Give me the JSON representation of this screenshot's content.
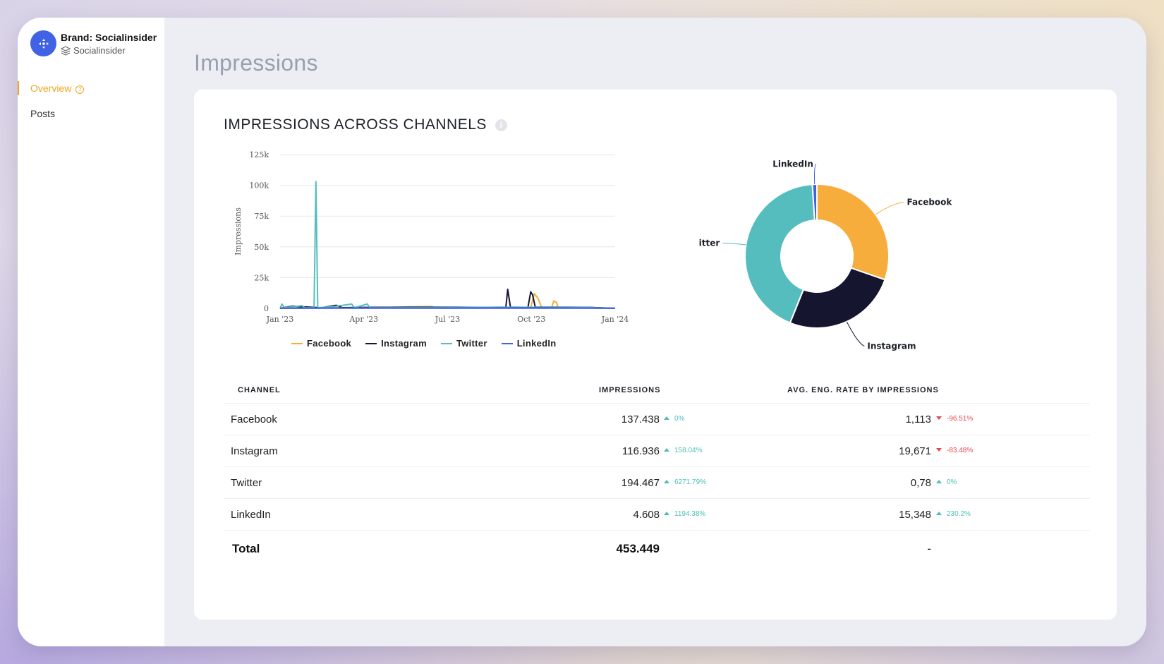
{
  "brand": {
    "name": "Brand: Socialinsider",
    "sub": "Socialinsider"
  },
  "nav": [
    {
      "label": "Overview",
      "active": true
    },
    {
      "label": "Posts",
      "active": false
    }
  ],
  "page_title": "Impressions",
  "card": {
    "title": "IMPRESSIONS ACROSS CHANNELS"
  },
  "colors": {
    "facebook": "#f7ad3b",
    "instagram": "#151530",
    "twitter": "#55bdbd",
    "linkedin": "#3f63e2",
    "up": "#4bbfba",
    "down": "#e8474e",
    "accent": "#f0a31e"
  },
  "chart_data": [
    {
      "type": "line",
      "ylabel": "Impressions",
      "ylim": [
        0,
        125000
      ],
      "y_ticks": [
        "0",
        "25k",
        "50k",
        "75k",
        "100k",
        "125k"
      ],
      "x_ticks": [
        "Jan '23",
        "Apr '23",
        "Jul '23",
        "Oct '23",
        "Jan '24"
      ],
      "x_range": [
        "2023-01-01",
        "2024-01-01"
      ],
      "series": [
        {
          "name": "Facebook",
          "color": "#f7ad3b",
          "points": [
            [
              "2023-01-01",
              0
            ],
            [
              "2023-06-15",
              1500
            ],
            [
              "2023-06-22",
              200
            ],
            [
              "2023-10-01",
              600
            ],
            [
              "2023-10-05",
              12000
            ],
            [
              "2023-10-09",
              8000
            ],
            [
              "2023-10-13",
              600
            ],
            [
              "2023-10-24",
              800
            ],
            [
              "2023-10-26",
              6000
            ],
            [
              "2023-10-29",
              5000
            ],
            [
              "2023-10-31",
              500
            ],
            [
              "2024-01-01",
              0
            ]
          ]
        },
        {
          "name": "Instagram",
          "color": "#151530",
          "points": [
            [
              "2023-01-01",
              0
            ],
            [
              "2023-01-10",
              1200
            ],
            [
              "2023-01-15",
              1800
            ],
            [
              "2023-01-20",
              1500
            ],
            [
              "2023-02-15",
              500
            ],
            [
              "2023-03-03",
              2500
            ],
            [
              "2023-03-10",
              600
            ],
            [
              "2023-04-10",
              800
            ],
            [
              "2023-05-20",
              1000
            ],
            [
              "2023-07-15",
              900
            ],
            [
              "2023-08-10",
              800
            ],
            [
              "2023-09-04",
              1000
            ],
            [
              "2023-09-06",
              15500
            ],
            [
              "2023-09-09",
              1000
            ],
            [
              "2023-09-28",
              800
            ],
            [
              "2023-10-01",
              13500
            ],
            [
              "2023-10-03",
              11000
            ],
            [
              "2023-10-06",
              1000
            ],
            [
              "2023-11-10",
              900
            ],
            [
              "2023-12-05",
              800
            ],
            [
              "2024-01-01",
              0
            ]
          ]
        },
        {
          "name": "Twitter",
          "color": "#55bdbd",
          "points": [
            [
              "2023-01-01",
              0
            ],
            [
              "2023-01-03",
              3500
            ],
            [
              "2023-01-06",
              600
            ],
            [
              "2023-01-25",
              2200
            ],
            [
              "2023-01-28",
              500
            ],
            [
              "2023-02-07",
              500
            ],
            [
              "2023-02-09",
              103000
            ],
            [
              "2023-02-11",
              500
            ],
            [
              "2023-03-01",
              1500
            ],
            [
              "2023-03-20",
              3500
            ],
            [
              "2023-03-23",
              600
            ],
            [
              "2023-04-06",
              3500
            ],
            [
              "2023-04-09",
              600
            ],
            [
              "2023-05-01",
              800
            ],
            [
              "2023-06-01",
              700
            ],
            [
              "2023-08-01",
              800
            ],
            [
              "2023-10-01",
              900
            ],
            [
              "2023-12-01",
              700
            ],
            [
              "2024-01-01",
              0
            ]
          ]
        },
        {
          "name": "LinkedIn",
          "color": "#3f63e2",
          "points": [
            [
              "2023-01-01",
              200
            ],
            [
              "2023-04-01",
              400
            ],
            [
              "2023-07-01",
              300
            ],
            [
              "2023-10-01",
              500
            ],
            [
              "2024-01-01",
              200
            ]
          ]
        }
      ]
    },
    {
      "type": "pie",
      "style": "donut",
      "labels": [
        "Facebook",
        "Instagram",
        "Twitter",
        "LinkedIn"
      ],
      "values": [
        137438,
        116936,
        194467,
        4608
      ],
      "colors": [
        "#f7ad3b",
        "#151530",
        "#55bdbd",
        "#3f63e2"
      ]
    }
  ],
  "table": {
    "headers": {
      "channel": "CHANNEL",
      "impressions": "IMPRESSIONS",
      "eng": "AVG. ENG. RATE BY IMPRESSIONS"
    },
    "rows": [
      {
        "channel": "Facebook",
        "impressions": "137.438",
        "imp_delta": "0%",
        "imp_dir": "up",
        "eng": "1,113",
        "eng_delta": "-96.51%",
        "eng_dir": "down"
      },
      {
        "channel": "Instagram",
        "impressions": "116.936",
        "imp_delta": "158.04%",
        "imp_dir": "up",
        "eng": "19,671",
        "eng_delta": "-83.48%",
        "eng_dir": "down"
      },
      {
        "channel": "Twitter",
        "impressions": "194.467",
        "imp_delta": "6271.79%",
        "imp_dir": "up",
        "eng": "0,78",
        "eng_delta": "0%",
        "eng_dir": "up"
      },
      {
        "channel": "LinkedIn",
        "impressions": "4.608",
        "imp_delta": "1194.38%",
        "imp_dir": "up",
        "eng": "15,348",
        "eng_delta": "230.2%",
        "eng_dir": "up"
      }
    ],
    "total": {
      "label": "Total",
      "impressions": "453.449",
      "eng": "-"
    }
  }
}
